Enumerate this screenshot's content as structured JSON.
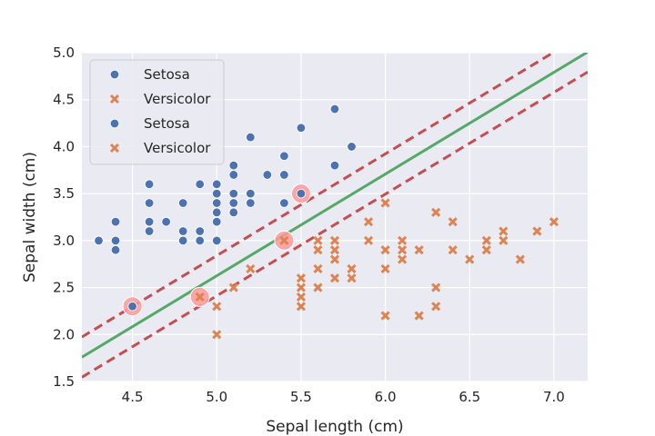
{
  "chart_data": {
    "type": "scatter",
    "title": "",
    "xlabel": "Sepal length (cm)",
    "ylabel": "Sepal width (cm)",
    "xlim": [
      4.2,
      7.2
    ],
    "ylim": [
      1.5,
      5.0
    ],
    "xticks": [
      4.5,
      5.0,
      5.5,
      6.0,
      6.5,
      7.0
    ],
    "yticks": [
      1.5,
      2.0,
      2.5,
      3.0,
      3.5,
      4.0,
      4.5,
      5.0
    ],
    "xtick_labels": [
      "4.5",
      "5.0",
      "5.5",
      "6.0",
      "6.5",
      "7.0"
    ],
    "ytick_labels": [
      "1.5",
      "2.0",
      "2.5",
      "3.0",
      "3.5",
      "4.0",
      "4.5",
      "5.0"
    ],
    "grid": true,
    "legend_placement": "top-left",
    "legend_entries": [
      {
        "label": "Setosa",
        "marker": "circle",
        "color": "#4c72b0"
      },
      {
        "label": "Versicolor",
        "marker": "x",
        "color": "#dd8452"
      },
      {
        "label": "Setosa",
        "marker": "circle",
        "color": "#4c72b0"
      },
      {
        "label": "Versicolor",
        "marker": "x",
        "color": "#dd8452"
      }
    ],
    "series": [
      {
        "name": "Setosa",
        "marker": "circle",
        "color": "#4c72b0",
        "points": [
          [
            4.3,
            3.0
          ],
          [
            4.4,
            3.2
          ],
          [
            4.4,
            3.0
          ],
          [
            4.4,
            2.9
          ],
          [
            4.5,
            2.3
          ],
          [
            4.6,
            3.6
          ],
          [
            4.6,
            3.4
          ],
          [
            4.6,
            3.2
          ],
          [
            4.6,
            3.1
          ],
          [
            4.7,
            3.2
          ],
          [
            4.8,
            3.4
          ],
          [
            4.8,
            3.1
          ],
          [
            4.8,
            3.0
          ],
          [
            4.9,
            3.6
          ],
          [
            4.9,
            3.1
          ],
          [
            4.9,
            3.0
          ],
          [
            5.0,
            3.6
          ],
          [
            5.0,
            3.5
          ],
          [
            5.0,
            3.4
          ],
          [
            5.0,
            3.3
          ],
          [
            5.0,
            3.2
          ],
          [
            5.0,
            3.0
          ],
          [
            5.1,
            3.8
          ],
          [
            5.1,
            3.7
          ],
          [
            5.1,
            3.5
          ],
          [
            5.1,
            3.4
          ],
          [
            5.1,
            3.3
          ],
          [
            5.2,
            4.1
          ],
          [
            5.2,
            3.5
          ],
          [
            5.2,
            3.4
          ],
          [
            5.3,
            3.7
          ],
          [
            5.4,
            3.9
          ],
          [
            5.4,
            3.7
          ],
          [
            5.4,
            3.4
          ],
          [
            5.5,
            4.2
          ],
          [
            5.5,
            3.5
          ],
          [
            5.7,
            4.4
          ],
          [
            5.7,
            3.8
          ],
          [
            5.8,
            4.0
          ]
        ]
      },
      {
        "name": "Versicolor",
        "marker": "x",
        "color": "#dd8452",
        "points": [
          [
            4.9,
            2.4
          ],
          [
            5.0,
            2.3
          ],
          [
            5.0,
            2.0
          ],
          [
            5.1,
            2.5
          ],
          [
            5.2,
            2.7
          ],
          [
            5.4,
            3.0
          ],
          [
            5.5,
            2.6
          ],
          [
            5.5,
            2.5
          ],
          [
            5.5,
            2.4
          ],
          [
            5.5,
            2.3
          ],
          [
            5.6,
            3.0
          ],
          [
            5.6,
            2.9
          ],
          [
            5.6,
            2.7
          ],
          [
            5.6,
            2.5
          ],
          [
            5.7,
            3.0
          ],
          [
            5.7,
            2.9
          ],
          [
            5.7,
            2.8
          ],
          [
            5.7,
            2.6
          ],
          [
            5.8,
            2.7
          ],
          [
            5.8,
            2.6
          ],
          [
            5.9,
            3.2
          ],
          [
            5.9,
            3.0
          ],
          [
            6.0,
            3.4
          ],
          [
            6.0,
            2.9
          ],
          [
            6.0,
            2.7
          ],
          [
            6.0,
            2.2
          ],
          [
            6.1,
            3.0
          ],
          [
            6.1,
            2.9
          ],
          [
            6.1,
            2.8
          ],
          [
            6.2,
            2.9
          ],
          [
            6.2,
            2.2
          ],
          [
            6.3,
            3.3
          ],
          [
            6.3,
            2.5
          ],
          [
            6.3,
            2.3
          ],
          [
            6.4,
            3.2
          ],
          [
            6.4,
            2.9
          ],
          [
            6.5,
            2.8
          ],
          [
            6.6,
            3.0
          ],
          [
            6.6,
            2.9
          ],
          [
            6.7,
            3.1
          ],
          [
            6.7,
            3.0
          ],
          [
            6.8,
            2.8
          ],
          [
            6.9,
            3.1
          ],
          [
            7.0,
            3.2
          ]
        ]
      }
    ],
    "highlighted_points": {
      "color": "#ff9a9a",
      "points": [
        [
          4.5,
          2.3
        ],
        [
          4.9,
          2.4
        ],
        [
          5.4,
          3.0
        ],
        [
          5.5,
          3.5
        ]
      ]
    },
    "lines": [
      {
        "role": "decision-boundary",
        "style": "solid",
        "color": "#55a868",
        "slope": 1.083,
        "intercept": -2.79
      },
      {
        "role": "margin",
        "style": "dashed",
        "color": "#c44e52",
        "slope": 1.083,
        "intercept": -2.575
      },
      {
        "role": "margin",
        "style": "dashed",
        "color": "#c44e52",
        "slope": 1.083,
        "intercept": -3.003
      }
    ]
  }
}
